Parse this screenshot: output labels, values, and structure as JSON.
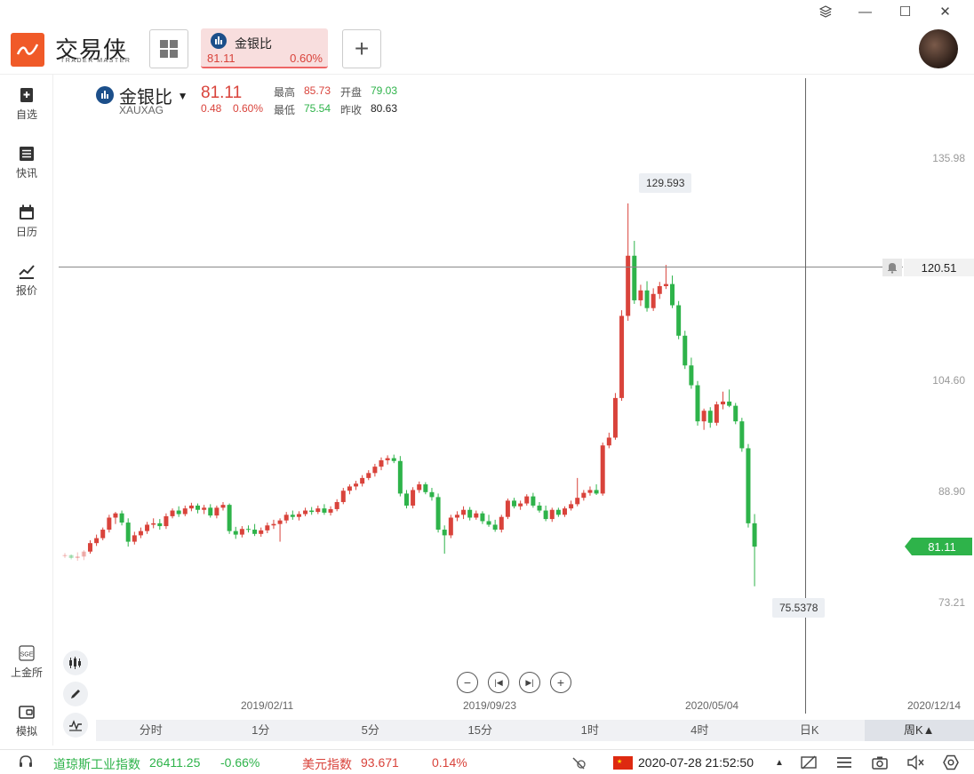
{
  "app": {
    "logo_text": "交易侠",
    "logo_sub": "TRADER MASTER"
  },
  "tab": {
    "name": "金银比",
    "price": "81.11",
    "pct": "0.60%"
  },
  "quote": {
    "name": "金银比",
    "code": "XAUXAG",
    "price": "81.11",
    "change": "0.48",
    "change_pct": "0.60%",
    "high_label": "最高",
    "high": "85.73",
    "low_label": "最低",
    "low": "75.54",
    "open_label": "开盘",
    "open": "79.03",
    "prev_label": "昨收",
    "prev": "80.63"
  },
  "sidebar": {
    "items": [
      {
        "label": "自选",
        "icon": "bookmark-add-icon"
      },
      {
        "label": "快讯",
        "icon": "news-list-icon"
      },
      {
        "label": "日历",
        "icon": "calendar-icon"
      },
      {
        "label": "报价",
        "icon": "chart-line-icon"
      }
    ],
    "bottom": [
      {
        "label": "上金所",
        "icon": "sge-icon"
      },
      {
        "label": "模拟",
        "icon": "wallet-icon"
      }
    ]
  },
  "y_ticks": [
    "135.98",
    "104.60",
    "88.90",
    "73.21"
  ],
  "x_ticks": [
    "2019/02/11",
    "2019/09/23",
    "2020/05/04",
    "2020/12/14"
  ],
  "crosshair_value": "120.51",
  "current_price_tag": "81.11",
  "high_marker": "129.593",
  "low_marker": "75.5378",
  "periods": [
    "分时",
    "1分",
    "5分",
    "15分",
    "1时",
    "4时",
    "日K",
    "周K▲"
  ],
  "active_period": "周K▲",
  "status": {
    "dow_label": "道琼斯工业指数",
    "dow_value": "26411.25",
    "dow_pct": "-0.66%",
    "usd_label": "美元指数",
    "usd_value": "93.671",
    "usd_pct": "0.14%",
    "datetime": "2020-07-28 21:52:50"
  },
  "colors": {
    "up": "#d9433b",
    "down": "#2eb34a",
    "accent": "#f05a28"
  },
  "chart_data": {
    "type": "candlestick",
    "title": "",
    "ylim": [
      70,
      140
    ],
    "candles": [
      [
        79.8,
        80.2,
        79.5,
        79.9
      ],
      [
        79.9,
        80.0,
        79.3,
        79.5
      ],
      [
        79.5,
        80.3,
        79.1,
        79.7
      ],
      [
        79.7,
        80.6,
        79.2,
        80.4
      ],
      [
        80.4,
        82.0,
        80.1,
        81.6
      ],
      [
        81.6,
        82.8,
        81.2,
        82.3
      ],
      [
        82.3,
        83.8,
        82.0,
        83.5
      ],
      [
        83.5,
        85.6,
        83.1,
        85.2
      ],
      [
        85.2,
        86.0,
        84.3,
        85.8
      ],
      [
        85.8,
        86.2,
        84.1,
        84.5
      ],
      [
        84.5,
        85.1,
        81.1,
        81.8
      ],
      [
        81.8,
        83.2,
        81.4,
        82.7
      ],
      [
        82.7,
        83.8,
        82.3,
        83.3
      ],
      [
        83.3,
        84.6,
        82.9,
        84.2
      ],
      [
        84.2,
        85.1,
        83.7,
        84.4
      ],
      [
        84.4,
        85.0,
        83.5,
        84.0
      ],
      [
        84.0,
        85.8,
        83.6,
        85.4
      ],
      [
        85.4,
        86.5,
        85.1,
        86.2
      ],
      [
        86.2,
        86.8,
        85.3,
        85.7
      ],
      [
        85.7,
        86.9,
        85.4,
        86.5
      ],
      [
        86.5,
        87.3,
        86.1,
        86.9
      ],
      [
        86.9,
        87.2,
        85.8,
        86.3
      ],
      [
        86.3,
        87.0,
        85.7,
        86.6
      ],
      [
        86.6,
        87.1,
        85.2,
        85.5
      ],
      [
        85.5,
        86.9,
        85.1,
        86.6
      ],
      [
        86.6,
        87.4,
        86.2,
        87.0
      ],
      [
        87.0,
        87.2,
        82.9,
        83.3
      ],
      [
        83.3,
        83.9,
        82.2,
        82.8
      ],
      [
        82.8,
        84.0,
        82.4,
        83.6
      ],
      [
        83.6,
        84.1,
        83.1,
        83.5
      ],
      [
        83.5,
        84.3,
        82.6,
        82.9
      ],
      [
        82.9,
        83.8,
        82.5,
        83.4
      ],
      [
        83.4,
        84.5,
        83.0,
        84.1
      ],
      [
        84.1,
        84.9,
        83.6,
        84.3
      ],
      [
        84.3,
        85.1,
        81.8,
        84.8
      ],
      [
        84.8,
        86.0,
        84.4,
        85.6
      ],
      [
        85.6,
        86.2,
        84.9,
        85.3
      ],
      [
        85.3,
        86.1,
        84.8,
        85.7
      ],
      [
        85.7,
        86.6,
        85.4,
        86.2
      ],
      [
        86.2,
        86.7,
        85.6,
        86.0
      ],
      [
        86.0,
        86.9,
        85.7,
        86.5
      ],
      [
        86.5,
        87.1,
        85.6,
        85.9
      ],
      [
        85.9,
        86.8,
        85.5,
        86.4
      ],
      [
        86.4,
        87.8,
        86.1,
        87.4
      ],
      [
        87.4,
        89.4,
        87.1,
        89.0
      ],
      [
        89.0,
        89.9,
        88.5,
        89.6
      ],
      [
        89.6,
        90.4,
        89.1,
        90.0
      ],
      [
        90.0,
        91.2,
        89.6,
        90.8
      ],
      [
        90.8,
        91.9,
        90.5,
        91.5
      ],
      [
        91.5,
        92.8,
        91.0,
        92.4
      ],
      [
        92.4,
        93.7,
        91.9,
        93.3
      ],
      [
        93.3,
        94.0,
        92.7,
        93.6
      ],
      [
        93.6,
        94.1,
        92.9,
        93.2
      ],
      [
        93.2,
        93.9,
        88.2,
        88.6
      ],
      [
        88.6,
        89.1,
        86.5,
        86.9
      ],
      [
        86.9,
        89.5,
        86.5,
        89.1
      ],
      [
        89.1,
        90.3,
        88.7,
        89.9
      ],
      [
        89.9,
        90.2,
        88.5,
        88.8
      ],
      [
        88.8,
        89.4,
        87.6,
        88.1
      ],
      [
        88.1,
        88.6,
        83.1,
        83.5
      ],
      [
        83.5,
        84.1,
        80.1,
        82.7
      ],
      [
        82.7,
        85.6,
        82.3,
        85.2
      ],
      [
        85.2,
        86.1,
        84.7,
        85.6
      ],
      [
        85.6,
        86.8,
        85.0,
        86.3
      ],
      [
        86.3,
        86.7,
        84.8,
        85.2
      ],
      [
        85.2,
        86.2,
        84.9,
        85.8
      ],
      [
        85.8,
        86.1,
        84.3,
        84.7
      ],
      [
        84.7,
        85.6,
        83.9,
        84.2
      ],
      [
        84.2,
        84.9,
        83.2,
        83.5
      ],
      [
        83.5,
        85.6,
        83.1,
        85.3
      ],
      [
        85.3,
        87.9,
        85.0,
        87.6
      ],
      [
        87.6,
        88.0,
        86.5,
        86.8
      ],
      [
        86.8,
        87.6,
        86.3,
        87.2
      ],
      [
        87.2,
        88.5,
        86.9,
        88.2
      ],
      [
        88.2,
        88.7,
        86.6,
        86.9
      ],
      [
        86.9,
        87.4,
        85.9,
        86.2
      ],
      [
        86.2,
        86.9,
        84.7,
        85.0
      ],
      [
        85.0,
        86.6,
        84.6,
        86.3
      ],
      [
        86.3,
        86.6,
        85.3,
        85.6
      ],
      [
        85.6,
        86.8,
        85.3,
        86.5
      ],
      [
        86.5,
        87.6,
        86.2,
        87.1
      ],
      [
        87.1,
        90.8,
        86.8,
        88.0
      ],
      [
        88.0,
        89.1,
        87.6,
        88.7
      ],
      [
        88.7,
        89.6,
        88.3,
        89.1
      ],
      [
        89.1,
        89.9,
        88.4,
        88.6
      ],
      [
        88.6,
        95.8,
        88.3,
        95.4
      ],
      [
        95.4,
        97.2,
        95.0,
        96.5
      ],
      [
        96.5,
        102.8,
        96.2,
        102.1
      ],
      [
        102.1,
        114.5,
        101.7,
        113.7
      ],
      [
        113.7,
        129.6,
        113.0,
        122.2
      ],
      [
        122.2,
        124.3,
        115.4,
        115.9
      ],
      [
        115.9,
        118.1,
        115.1,
        117.3
      ],
      [
        117.3,
        118.6,
        114.3,
        114.8
      ],
      [
        114.8,
        117.6,
        114.4,
        116.8
      ],
      [
        116.8,
        118.5,
        116.1,
        117.9
      ],
      [
        117.9,
        120.9,
        117.5,
        118.2
      ],
      [
        118.2,
        119.4,
        114.8,
        115.2
      ],
      [
        115.2,
        115.8,
        110.4,
        110.9
      ],
      [
        110.9,
        111.6,
        106.2,
        106.7
      ],
      [
        106.7,
        107.8,
        103.4,
        103.9
      ],
      [
        103.9,
        104.5,
        98.2,
        98.8
      ],
      [
        98.8,
        100.6,
        97.6,
        100.3
      ],
      [
        100.3,
        100.8,
        97.9,
        98.6
      ],
      [
        98.6,
        101.6,
        98.2,
        101.2
      ],
      [
        101.2,
        103.0,
        100.5,
        101.6
      ],
      [
        101.6,
        103.3,
        100.8,
        101.0
      ],
      [
        101.0,
        101.4,
        98.4,
        98.8
      ],
      [
        98.8,
        99.3,
        94.5,
        95.0
      ],
      [
        95.0,
        95.6,
        83.8,
        84.4
      ],
      [
        84.4,
        85.7,
        75.5,
        81.1
      ]
    ]
  }
}
